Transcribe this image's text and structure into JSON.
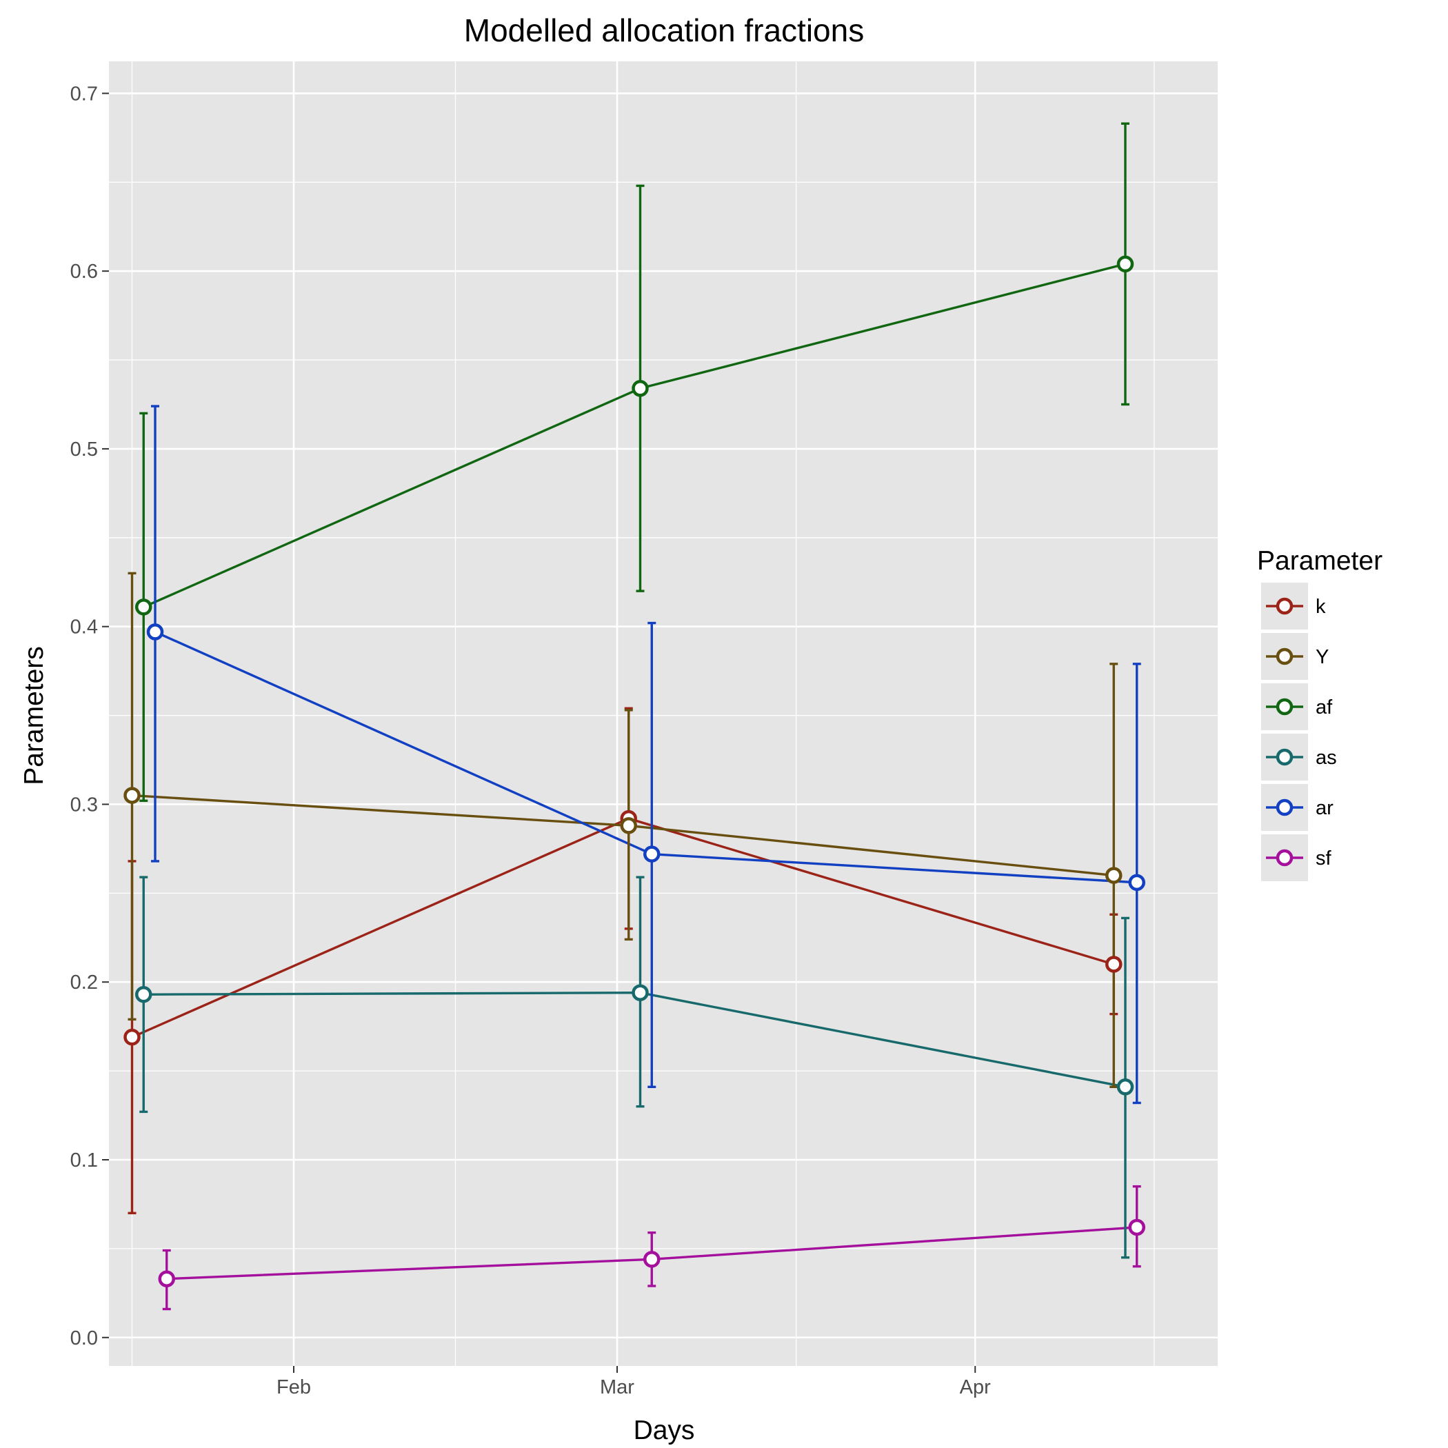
{
  "chart_data": {
    "type": "line",
    "title": "Modelled allocation fractions",
    "xlabel": "Days",
    "ylabel": "Parameters",
    "x_scale": "date",
    "xlim": [
      "2017-01-16",
      "2017-04-22"
    ],
    "ylim": [
      -0.016,
      0.718
    ],
    "x_ticks": [
      {
        "date": "2017-02-01",
        "label": "Feb"
      },
      {
        "date": "2017-03-01",
        "label": "Mar"
      },
      {
        "date": "2017-04-01",
        "label": "Apr"
      }
    ],
    "y_ticks": [
      "0.0",
      "0.1",
      "0.2",
      "0.3",
      "0.4",
      "0.5",
      "0.6",
      "0.7"
    ],
    "grid": true,
    "legend": {
      "title": "Parameter",
      "position": "right"
    },
    "series": [
      {
        "name": "k",
        "color": "#9b2318",
        "points": [
          {
            "date": "2017-01-18",
            "y": 0.169,
            "lo": 0.07,
            "hi": 0.268
          },
          {
            "date": "2017-03-02",
            "y": 0.292,
            "lo": 0.23,
            "hi": 0.354
          },
          {
            "date": "2017-04-13",
            "y": 0.21,
            "lo": 0.182,
            "hi": 0.238
          }
        ]
      },
      {
        "name": "Y",
        "color": "#684f10",
        "points": [
          {
            "date": "2017-01-18",
            "y": 0.305,
            "lo": 0.179,
            "hi": 0.43
          },
          {
            "date": "2017-03-02",
            "y": 0.288,
            "lo": 0.224,
            "hi": 0.353
          },
          {
            "date": "2017-04-13",
            "y": 0.26,
            "lo": 0.141,
            "hi": 0.379
          }
        ]
      },
      {
        "name": "af",
        "color": "#116612",
        "points": [
          {
            "date": "2017-01-19",
            "y": 0.411,
            "lo": 0.302,
            "hi": 0.52
          },
          {
            "date": "2017-03-03",
            "y": 0.534,
            "lo": 0.42,
            "hi": 0.648
          },
          {
            "date": "2017-04-14",
            "y": 0.604,
            "lo": 0.525,
            "hi": 0.683
          }
        ]
      },
      {
        "name": "as",
        "color": "#17696b",
        "points": [
          {
            "date": "2017-01-19",
            "y": 0.193,
            "lo": 0.127,
            "hi": 0.259
          },
          {
            "date": "2017-03-03",
            "y": 0.194,
            "lo": 0.13,
            "hi": 0.259
          },
          {
            "date": "2017-04-14",
            "y": 0.141,
            "lo": 0.045,
            "hi": 0.236
          }
        ]
      },
      {
        "name": "ar",
        "color": "#1240c2",
        "points": [
          {
            "date": "2017-01-20",
            "y": 0.397,
            "lo": 0.268,
            "hi": 0.524
          },
          {
            "date": "2017-03-04",
            "y": 0.272,
            "lo": 0.141,
            "hi": 0.402
          },
          {
            "date": "2017-04-15",
            "y": 0.256,
            "lo": 0.132,
            "hi": 0.379
          }
        ]
      },
      {
        "name": "sf",
        "color": "#a4109c",
        "points": [
          {
            "date": "2017-01-21",
            "y": 0.033,
            "lo": 0.016,
            "hi": 0.049
          },
          {
            "date": "2017-03-04",
            "y": 0.044,
            "lo": 0.029,
            "hi": 0.059
          },
          {
            "date": "2017-04-15",
            "y": 0.062,
            "lo": 0.04,
            "hi": 0.085
          }
        ]
      }
    ]
  },
  "colors": {
    "panel_background": "#e5e5e5",
    "grid": "#ffffff"
  }
}
